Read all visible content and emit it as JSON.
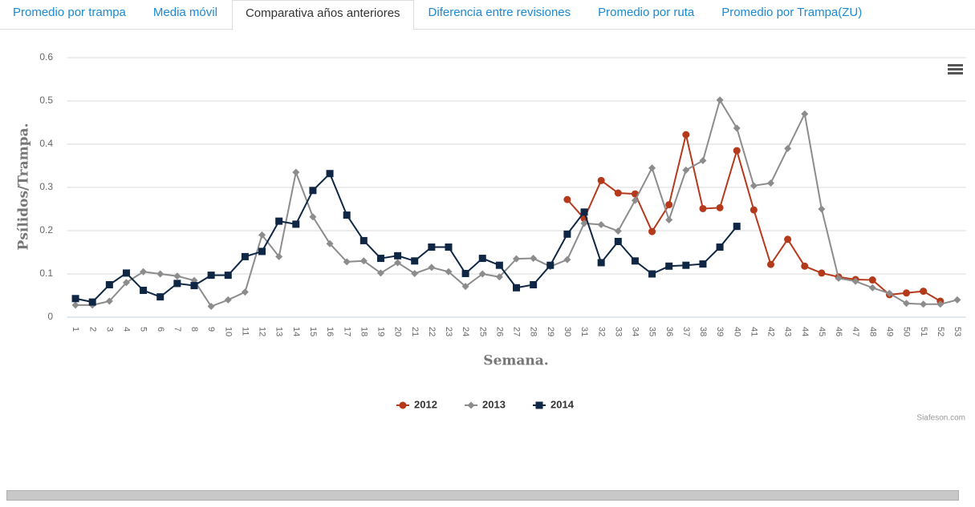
{
  "tabs": [
    "Promedio por trampa",
    "Media móvil",
    "Comparativa años anteriores",
    "Diferencia entre revisiones",
    "Promedio por ruta",
    "Promedio por Trampa(ZU)"
  ],
  "active_tab": 2,
  "chart_data": {
    "type": "line",
    "y_label": "Psílidos/Trampa.",
    "x_label": "Semana.",
    "credits": "Siafeson.com",
    "categories": [
      "1",
      "2",
      "3",
      "4",
      "5",
      "6",
      "7",
      "8",
      "9",
      "10",
      "11",
      "12",
      "13",
      "14",
      "15",
      "16",
      "17",
      "18",
      "19",
      "20",
      "21",
      "22",
      "23",
      "24",
      "25",
      "26",
      "27",
      "28",
      "29",
      "30",
      "31",
      "32",
      "33",
      "34",
      "35",
      "36",
      "37",
      "38",
      "39",
      "40",
      "41",
      "42",
      "43",
      "44",
      "45",
      "46",
      "47",
      "48",
      "49",
      "50",
      "51",
      "52",
      "53"
    ],
    "ylim": [
      0,
      0.6
    ],
    "yticks": [
      0,
      0.1,
      0.2,
      0.3,
      0.4,
      0.5,
      0.6
    ],
    "grid": true,
    "legend": "bottom",
    "series": [
      {
        "name": "2012",
        "color": "#b5391b",
        "marker": "circle",
        "values": [
          null,
          null,
          null,
          null,
          null,
          null,
          null,
          null,
          null,
          null,
          null,
          null,
          null,
          null,
          null,
          null,
          null,
          null,
          null,
          null,
          null,
          null,
          null,
          null,
          null,
          null,
          null,
          null,
          null,
          0.272,
          0.228,
          0.316,
          0.287,
          0.285,
          0.198,
          0.26,
          0.422,
          0.251,
          0.253,
          0.385,
          0.248,
          0.122,
          0.18,
          0.118,
          0.102,
          0.093,
          0.087,
          0.086,
          0.052,
          0.056,
          0.06,
          0.037,
          null
        ]
      },
      {
        "name": "2013",
        "color": "#8c8c8c",
        "marker": "diamond",
        "values": [
          0.028,
          0.028,
          0.037,
          0.08,
          0.105,
          0.1,
          0.095,
          0.085,
          0.025,
          0.04,
          0.058,
          0.19,
          0.14,
          0.335,
          0.232,
          0.17,
          0.128,
          0.13,
          0.102,
          0.126,
          0.101,
          0.115,
          0.105,
          0.071,
          0.1,
          0.093,
          0.135,
          0.136,
          0.117,
          0.133,
          0.217,
          0.214,
          0.199,
          0.27,
          0.345,
          0.225,
          0.34,
          0.362,
          0.502,
          0.437,
          0.304,
          0.31,
          0.39,
          0.47,
          0.25,
          0.09,
          0.083,
          0.068,
          0.055,
          0.032,
          0.03,
          0.03,
          0.04
        ]
      },
      {
        "name": "2014",
        "color": "#0f2744",
        "marker": "square",
        "values": [
          0.043,
          0.035,
          0.075,
          0.102,
          0.062,
          0.047,
          0.078,
          0.073,
          0.097,
          0.097,
          0.14,
          0.152,
          0.222,
          0.215,
          0.293,
          0.332,
          0.236,
          0.177,
          0.136,
          0.142,
          0.13,
          0.162,
          0.162,
          0.101,
          0.136,
          0.12,
          0.068,
          0.075,
          0.12,
          0.192,
          0.243,
          0.126,
          0.175,
          0.13,
          0.1,
          0.118,
          0.12,
          0.123,
          0.162,
          0.21,
          null,
          null,
          null,
          null,
          null,
          null,
          null,
          null,
          null,
          null,
          null,
          null,
          null
        ]
      }
    ]
  }
}
